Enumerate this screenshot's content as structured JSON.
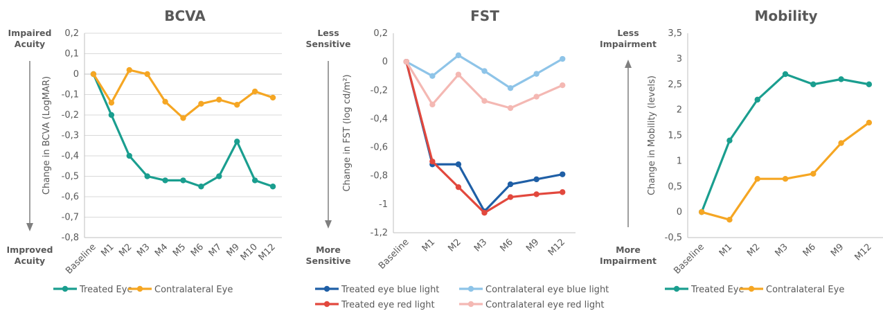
{
  "chart_data": [
    {
      "type": "line",
      "title": "BCVA",
      "ylabel": "Change in BCVA (LogMAR)",
      "ylim": [
        -0.8,
        0.2
      ],
      "ytick_step": 0.1,
      "categories": [
        "Baseline",
        "M1",
        "M2",
        "M3",
        "M4",
        "M5",
        "M6",
        "M7",
        "M9",
        "M10",
        "M12"
      ],
      "series": [
        {
          "name": "Treated Eye",
          "color": "#1a9e8f",
          "values": [
            0,
            -0.2,
            -0.4,
            -0.5,
            -0.52,
            -0.52,
            -0.55,
            -0.5,
            -0.33,
            -0.52,
            -0.55
          ]
        },
        {
          "name": "Contralateral Eye",
          "color": "#f5a623",
          "values": [
            0,
            -0.14,
            0.02,
            0.0,
            -0.135,
            -0.215,
            -0.145,
            -0.125,
            -0.15,
            -0.085,
            -0.115
          ]
        }
      ],
      "side_labels": {
        "top": "Impaired\nAcuity",
        "bottom": "Improved\nAcuity",
        "arrow": "down"
      },
      "grid": true
    },
    {
      "type": "line",
      "title": "FST",
      "ylabel": "Change in FST (log cd/m²)",
      "ylim": [
        -1.2,
        0.2
      ],
      "ytick_step": 0.2,
      "categories": [
        "Baseline",
        "M1",
        "M2",
        "M3",
        "M6",
        "M9",
        "M12"
      ],
      "series": [
        {
          "name": "Treated eye blue light",
          "color": "#1f5fa6",
          "values": [
            0,
            -0.72,
            -0.72,
            -1.05,
            -0.86,
            -0.825,
            -0.79
          ]
        },
        {
          "name": "Contralateral eye blue light",
          "color": "#8ec4e8",
          "values": [
            0,
            -0.1,
            0.045,
            -0.065,
            -0.185,
            -0.085,
            0.02
          ]
        },
        {
          "name": "Treated eye red light",
          "color": "#e2483d",
          "values": [
            0,
            -0.7,
            -0.88,
            -1.06,
            -0.95,
            -0.93,
            -0.915
          ]
        },
        {
          "name": "Contralateral eye red light",
          "color": "#f4b8b3",
          "values": [
            0,
            -0.3,
            -0.09,
            -0.275,
            -0.325,
            -0.245,
            -0.165
          ]
        }
      ],
      "side_labels": {
        "top": "Less\nSensitive",
        "bottom": "More\nSensitive",
        "arrow": "down"
      },
      "grid": false
    },
    {
      "type": "line",
      "title": "Mobility",
      "ylabel": "Change in Mobility (levels)",
      "ylim": [
        -0.5,
        3.5
      ],
      "ytick_step": 0.5,
      "categories": [
        "Baseline",
        "M1",
        "M2",
        "M3",
        "M6",
        "M9",
        "M12"
      ],
      "series": [
        {
          "name": "Treated Eye",
          "color": "#1a9e8f",
          "values": [
            0,
            1.4,
            2.2,
            2.7,
            2.5,
            2.6,
            2.5
          ]
        },
        {
          "name": "Contralateral Eye",
          "color": "#f5a623",
          "values": [
            0,
            -0.15,
            0.65,
            0.65,
            0.75,
            1.35,
            1.75
          ]
        }
      ],
      "side_labels": {
        "top": "Less\nImpairment",
        "bottom": "More\nImpairment",
        "arrow": "up"
      },
      "grid": false
    }
  ]
}
